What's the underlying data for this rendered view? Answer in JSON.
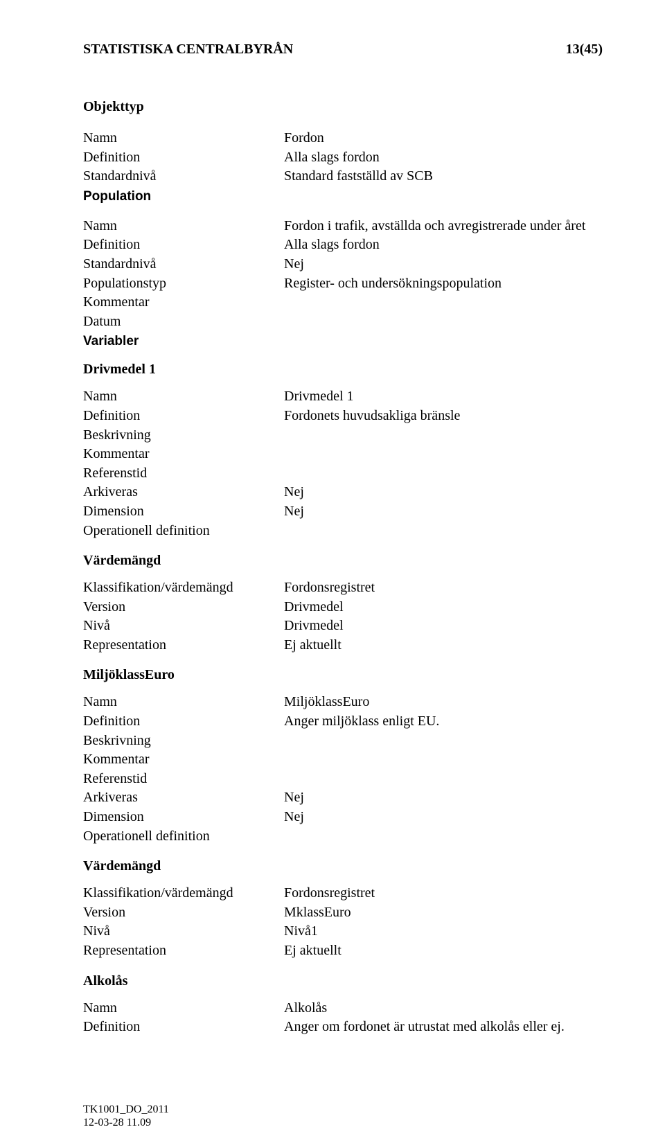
{
  "header": {
    "org": "STATISTISKA CENTRALBYRÅN",
    "page": "13(45)"
  },
  "objekttyp": {
    "heading": "Objekttyp",
    "rows": [
      {
        "label": "Namn",
        "value": "Fordon"
      },
      {
        "label": "Definition",
        "value": "Alla slags fordon"
      },
      {
        "label": "Standardnivå",
        "value": "Standard fastställd av SCB"
      }
    ]
  },
  "population": {
    "heading": "Population",
    "rows": [
      {
        "label": "Namn",
        "value": "Fordon i trafik, avställda och avregistrerade under året"
      },
      {
        "label": "Definition",
        "value": "Alla slags fordon"
      },
      {
        "label": "Standardnivå",
        "value": "Nej"
      },
      {
        "label": "Populationstyp",
        "value": "Register- och undersökningspopulation"
      },
      {
        "label": "Kommentar",
        "value": ""
      },
      {
        "label": "Datum",
        "value": ""
      }
    ]
  },
  "variabler": {
    "heading": "Variabler"
  },
  "drivmedel1": {
    "heading": "Drivmedel 1",
    "rows": [
      {
        "label": "Namn",
        "value": "Drivmedel 1"
      },
      {
        "label": "Definition",
        "value": "Fordonets huvudsakliga bränsle"
      },
      {
        "label": "Beskrivning",
        "value": ""
      },
      {
        "label": "Kommentar",
        "value": ""
      },
      {
        "label": "Referenstid",
        "value": ""
      },
      {
        "label": "Arkiveras",
        "value": "Nej"
      },
      {
        "label": "Dimension",
        "value": "Nej"
      },
      {
        "label": "Operationell definition",
        "value": ""
      }
    ],
    "vardemangd_heading": "Värdemängd",
    "vardemangd_rows": [
      {
        "label": "Klassifikation/värdemängd",
        "value": "Fordonsregistret"
      },
      {
        "label": "Version",
        "value": "Drivmedel"
      },
      {
        "label": "Nivå",
        "value": "Drivmedel"
      },
      {
        "label": "Representation",
        "value": "Ej aktuellt"
      }
    ]
  },
  "miljoklass": {
    "heading": "MiljöklassEuro",
    "rows": [
      {
        "label": "Namn",
        "value": "MiljöklassEuro"
      },
      {
        "label": "Definition",
        "value": "Anger miljöklass enligt EU."
      },
      {
        "label": "Beskrivning",
        "value": ""
      },
      {
        "label": "Kommentar",
        "value": ""
      },
      {
        "label": "Referenstid",
        "value": ""
      },
      {
        "label": "Arkiveras",
        "value": "Nej"
      },
      {
        "label": "Dimension",
        "value": "Nej"
      },
      {
        "label": "Operationell definition",
        "value": ""
      }
    ],
    "vardemangd_heading": "Värdemängd",
    "vardemangd_rows": [
      {
        "label": "Klassifikation/värdemängd",
        "value": "Fordonsregistret"
      },
      {
        "label": "Version",
        "value": "MklassEuro"
      },
      {
        "label": "Nivå",
        "value": "Nivå1"
      },
      {
        "label": "Representation",
        "value": "Ej aktuellt"
      }
    ]
  },
  "alkolas": {
    "heading": "Alkolås",
    "rows": [
      {
        "label": "Namn",
        "value": "Alkolås"
      },
      {
        "label": "Definition",
        "value": "Anger om fordonet är utrustat med alkolås eller ej."
      }
    ]
  },
  "footer": {
    "line1": "TK1001_DO_2011",
    "line2": "12-03-28 11.09"
  }
}
